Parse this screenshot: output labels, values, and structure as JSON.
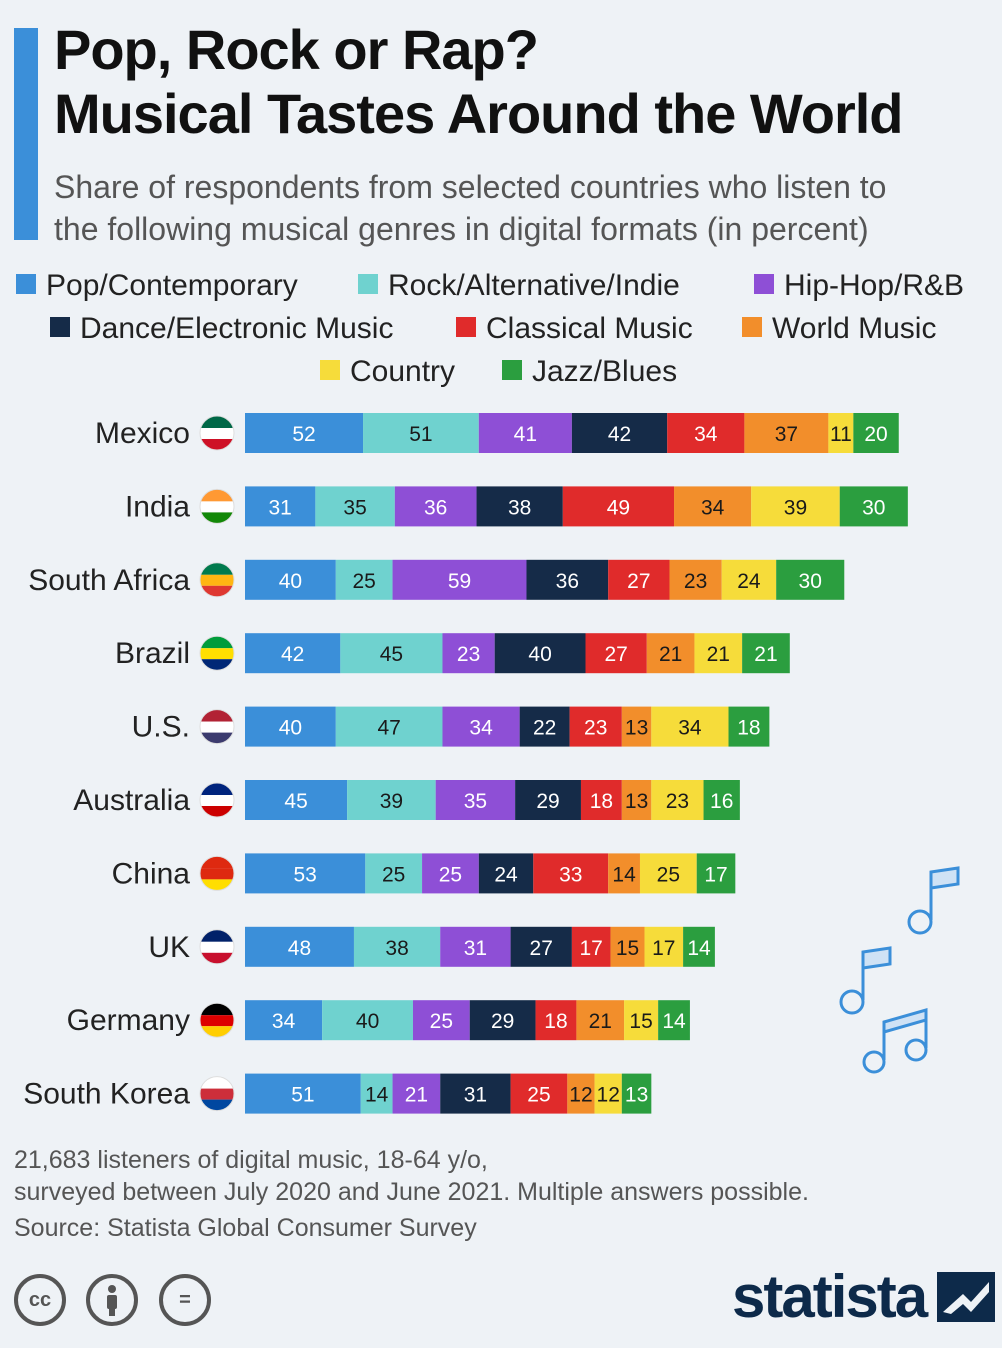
{
  "header": {
    "title_line1": "Pop, Rock or Rap?",
    "title_line2": "Musical Tastes Around the World",
    "subtitle_line1": "Share of respondents from selected countries who listen to",
    "subtitle_line2": "the following musical genres in digital formats (in percent)"
  },
  "colors": {
    "accent": "#3b8fd9",
    "pop": "#3b8fd9",
    "rock": "#6fd2cf",
    "hiphop": "#8e4fd6",
    "dance": "#152b48",
    "classical": "#e02b2b",
    "world": "#f28e2b",
    "country": "#f6dc3a",
    "jazz": "#2b9e3f"
  },
  "legend": [
    {
      "label": "Pop/Contemporary",
      "color": "#3b8fd9"
    },
    {
      "label": "Rock/Alternative/Indie",
      "color": "#6fd2cf"
    },
    {
      "label": "Hip-Hop/R&B",
      "color": "#8e4fd6"
    },
    {
      "label": "Dance/Electronic Music",
      "color": "#152b48"
    },
    {
      "label": "Classical Music",
      "color": "#e02b2b"
    },
    {
      "label": "World Music",
      "color": "#f28e2b"
    },
    {
      "label": "Country",
      "color": "#f6dc3a"
    },
    {
      "label": "Jazz/Blues",
      "color": "#2b9e3f"
    }
  ],
  "chart_data": {
    "type": "bar",
    "orientation": "horizontal",
    "stacked": true,
    "categories": [
      "Mexico",
      "India",
      "South Africa",
      "Brazil",
      "U.S.",
      "Australia",
      "China",
      "UK",
      "Germany",
      "South Korea"
    ],
    "series": [
      {
        "name": "Pop/Contemporary",
        "values": [
          52,
          31,
          40,
          42,
          40,
          45,
          53,
          48,
          34,
          51
        ]
      },
      {
        "name": "Rock/Alternative/Indie",
        "values": [
          51,
          35,
          25,
          45,
          47,
          39,
          25,
          38,
          40,
          14
        ]
      },
      {
        "name": "Hip-Hop/R&B",
        "values": [
          41,
          36,
          59,
          23,
          34,
          35,
          25,
          31,
          25,
          21
        ]
      },
      {
        "name": "Dance/Electronic Music",
        "values": [
          42,
          38,
          36,
          40,
          22,
          29,
          24,
          27,
          29,
          31
        ]
      },
      {
        "name": "Classical Music",
        "values": [
          34,
          49,
          27,
          27,
          23,
          18,
          33,
          17,
          18,
          25
        ]
      },
      {
        "name": "World Music",
        "values": [
          37,
          34,
          23,
          21,
          13,
          13,
          14,
          15,
          21,
          12
        ]
      },
      {
        "name": "Country",
        "values": [
          11,
          39,
          24,
          21,
          34,
          23,
          25,
          17,
          15,
          12
        ]
      },
      {
        "name": "Jazz/Blues",
        "values": [
          20,
          30,
          30,
          21,
          18,
          16,
          17,
          14,
          14,
          13
        ]
      }
    ],
    "grid": false,
    "legend_position": "top"
  },
  "notes": {
    "line1": "21,683 listeners of digital music, 18-64 y/o,",
    "line2": "surveyed between July 2020 and June 2021. Multiple answers possible.",
    "source": "Source: Statista Global Consumer Survey"
  },
  "footer": {
    "cc_label": "cc",
    "equal_label": "=",
    "logo_text": "statista"
  }
}
